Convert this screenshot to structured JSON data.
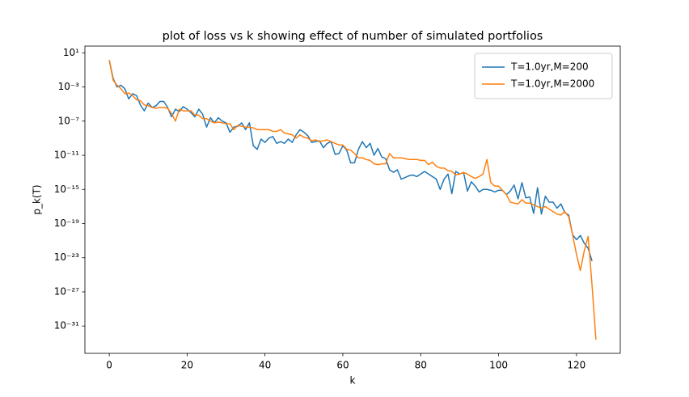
{
  "chart_data": {
    "type": "line",
    "title": "plot of loss vs k showing effect of number of simulated portfolios",
    "x_label": "k",
    "y_label": "p_k(T)",
    "yscale": "log",
    "legend": "upper right",
    "xlim": [
      -6.25,
      131.25
    ],
    "xticks": [
      0,
      20,
      40,
      60,
      80,
      100,
      120
    ],
    "ylim": [
      6.3e-35,
      61.7
    ],
    "yticks": [
      {
        "value": 10,
        "label": "10¹"
      },
      {
        "value": 0.001,
        "label": "10⁻³"
      },
      {
        "value": 1e-07,
        "label": "10⁻⁷"
      },
      {
        "value": 1e-11,
        "label": "10⁻¹¹"
      },
      {
        "value": 1e-15,
        "label": "10⁻¹⁵"
      },
      {
        "value": 1e-19,
        "label": "10⁻¹⁹"
      },
      {
        "value": 1e-23,
        "label": "10⁻²³"
      },
      {
        "value": 1e-27,
        "label": "10⁻²⁷"
      },
      {
        "value": 1e-31,
        "label": "10⁻³¹"
      }
    ],
    "x": [
      0,
      1,
      2,
      3,
      4,
      5,
      6,
      7,
      8,
      9,
      10,
      11,
      12,
      13,
      14,
      15,
      16,
      17,
      18,
      19,
      20,
      21,
      22,
      23,
      24,
      25,
      26,
      27,
      28,
      29,
      30,
      31,
      32,
      33,
      34,
      35,
      36,
      37,
      38,
      39,
      40,
      41,
      42,
      43,
      44,
      45,
      46,
      47,
      48,
      49,
      50,
      51,
      52,
      53,
      54,
      55,
      56,
      57,
      58,
      59,
      60,
      61,
      62,
      63,
      64,
      65,
      66,
      67,
      68,
      69,
      70,
      71,
      72,
      73,
      74,
      75,
      76,
      77,
      78,
      79,
      80,
      81,
      82,
      83,
      84,
      85,
      86,
      87,
      88,
      89,
      90,
      91,
      92,
      93,
      94,
      95,
      96,
      97,
      98,
      99,
      100,
      101,
      102,
      103,
      104,
      105,
      106,
      107,
      108,
      109,
      110,
      111,
      112,
      113,
      114,
      115,
      116,
      117,
      118,
      119,
      120,
      121,
      122,
      123,
      124,
      125
    ],
    "series": [
      {
        "name": "T=1.0yr,M=200",
        "color": "#1f77b4",
        "values": [
          1.4,
          0.01,
          0.001,
          0.0016,
          0.00063,
          4e-05,
          0.00016,
          0.0001,
          7.9e-06,
          1.6e-06,
          1.3e-05,
          4e-06,
          6.3e-06,
          2e-05,
          2e-05,
          4e-06,
          3.2e-07,
          2.5e-06,
          1.3e-06,
          5e-06,
          2.5e-06,
          1e-06,
          3.2e-07,
          2.5e-06,
          6.3e-07,
          2e-08,
          2.5e-07,
          6.3e-08,
          2.5e-07,
          1e-07,
          6.3e-08,
          5e-09,
          2e-08,
          2.5e-08,
          6.3e-08,
          1e-08,
          6.3e-08,
          1.3e-10,
          5e-11,
          7.9e-10,
          3.2e-10,
          1e-09,
          1.6e-09,
          2.5e-10,
          4e-10,
          2.5e-10,
          7.9e-10,
          3.2e-10,
          2.5e-09,
          1e-08,
          5e-09,
          2e-09,
          3.2e-10,
          4e-10,
          5e-10,
          7.9e-11,
          2.5e-10,
          4e-10,
          1.3e-11,
          1.6e-11,
          1.3e-10,
          4e-11,
          1.3e-12,
          1.3e-12,
          5e-11,
          4e-10,
          7.9e-11,
          2.5e-10,
          1e-11,
          6.3e-11,
          6.3e-12,
          4e-12,
          2e-13,
          1e-13,
          2e-13,
          1.6e-14,
          2.5e-14,
          4e-14,
          5e-14,
          3.2e-14,
          6.3e-14,
          1.3e-13,
          6.3e-14,
          3.2e-14,
          1.6e-14,
          1e-15,
          1.6e-14,
          6.3e-14,
          3.2e-16,
          1.3e-13,
          6.3e-14,
          1e-13,
          6.3e-16,
          7.9e-15,
          2.5e-15,
          5e-16,
          1e-15,
          1e-15,
          7.9e-16,
          5e-16,
          7.9e-16,
          7.9e-16,
          2.5e-16,
          6.3e-16,
          3.2e-15,
          7.9e-17,
          6.3e-15,
          1e-16,
          1.3e-16,
          1.6e-18,
          1.6e-15,
          1.3e-18,
          1.6e-16,
          3.2e-17,
          3.2e-17,
          6.3e-18,
          2e-17,
          2e-18,
          1e-18,
          5e-21,
          1.3e-21,
          4e-21,
          5e-22,
          1.3e-22,
          4e-24,
          null
        ]
      },
      {
        "name": "T=1.0yr,M=2000",
        "color": "#ff7f0e",
        "values": [
          1.4,
          0.0063,
          0.0016,
          0.00063,
          0.00016,
          0.0002,
          0.0001,
          3.2e-05,
          2.5e-05,
          7.9e-06,
          6.3e-06,
          4e-06,
          3.2e-06,
          4e-06,
          4e-06,
          3.2e-06,
          7.9e-07,
          1e-07,
          2.5e-06,
          1.6e-06,
          1.6e-06,
          1.6e-06,
          5e-07,
          5e-07,
          2e-07,
          2e-07,
          1e-07,
          6.3e-08,
          7.9e-08,
          6.3e-08,
          5e-08,
          5e-08,
          1e-08,
          3.2e-08,
          2.5e-08,
          2e-08,
          2e-08,
          1.6e-08,
          1e-08,
          1e-08,
          1e-08,
          1e-08,
          6.3e-09,
          6.3e-09,
          1e-08,
          4e-09,
          3.2e-09,
          2.5e-09,
          1e-09,
          2.5e-09,
          1.3e-09,
          1e-09,
          5e-10,
          6.3e-10,
          4e-10,
          5e-10,
          6.3e-10,
          4e-10,
          2.5e-10,
          1.6e-10,
          1.6e-10,
          5e-11,
          4e-11,
          1.6e-11,
          5e-12,
          5e-12,
          3.2e-12,
          2.5e-12,
          1e-12,
          7.9e-13,
          1e-12,
          1e-12,
          1.6e-11,
          5e-12,
          5e-12,
          5e-12,
          4e-12,
          3.2e-12,
          3.2e-12,
          3.2e-12,
          2.5e-12,
          2.5e-12,
          7.9e-13,
          1.6e-12,
          5e-13,
          3.2e-13,
          3.2e-13,
          1.6e-13,
          1.3e-13,
          5e-14,
          6.3e-14,
          1e-13,
          6.3e-14,
          3.2e-14,
          2e-14,
          3.2e-14,
          6.3e-14,
          3.2e-12,
          6.3e-15,
          2.5e-15,
          2.5e-15,
          7.9e-16,
          2.5e-16,
          3.2e-17,
          2.5e-17,
          2e-17,
          6.3e-17,
          2.5e-17,
          2.5e-17,
          1.6e-17,
          1e-17,
          6.3e-18,
          1e-17,
          5e-18,
          2.5e-18,
          1.3e-18,
          1e-18,
          2.5e-18,
          6.3e-19,
          5e-21,
          2.5e-23,
          3.2e-25,
          6.3e-23,
          3.2e-21,
          6.3e-27,
          2.5e-33
        ]
      }
    ]
  }
}
